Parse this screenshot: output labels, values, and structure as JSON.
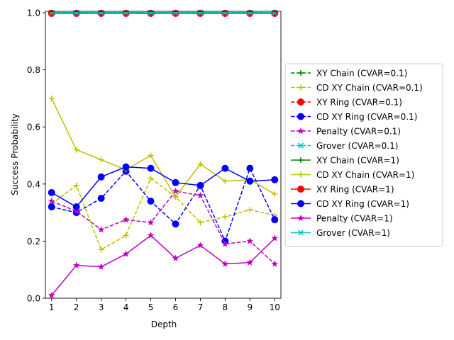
{
  "chart_data": {
    "type": "line",
    "title": "",
    "xlabel": "Depth",
    "ylabel": "Success Probability",
    "xlim": [
      0.75,
      10.25
    ],
    "ylim": [
      0,
      1.005
    ],
    "x": [
      1,
      2,
      3,
      4,
      5,
      6,
      7,
      8,
      9,
      10
    ],
    "xticks": [
      "1",
      "2",
      "3",
      "4",
      "5",
      "6",
      "7",
      "8",
      "9",
      "10"
    ],
    "yticks": [
      "0.0",
      "0.2",
      "0.4",
      "0.6",
      "0.8",
      "1.0"
    ],
    "grid": false,
    "legend_position": "outside-right",
    "series": [
      {
        "name": "XY Chain (CVAR=0.1)",
        "color": "#008000",
        "dash": true,
        "marker": "plus",
        "values": [
          1.0,
          1.0,
          1.0,
          1.0,
          1.0,
          1.0,
          1.0,
          1.0,
          1.0,
          1.0
        ]
      },
      {
        "name": "CD XY Chain (CVAR=0.1)",
        "color": "#bfbf00",
        "dash": true,
        "marker": "plus",
        "values": [
          0.33,
          0.395,
          0.17,
          0.22,
          0.42,
          0.355,
          0.265,
          0.285,
          0.31,
          0.29
        ]
      },
      {
        "name": "XY Ring (CVAR=0.1)",
        "color": "#ff0000",
        "dash": true,
        "marker": "circle",
        "values": [
          0.998,
          0.998,
          0.998,
          0.998,
          0.998,
          0.998,
          0.998,
          0.998,
          0.998,
          0.998
        ]
      },
      {
        "name": "CD XY Ring (CVAR=0.1)",
        "color": "#0000ff",
        "dash": true,
        "marker": "circle",
        "values": [
          0.32,
          0.3,
          0.35,
          0.445,
          0.34,
          0.26,
          0.395,
          0.2,
          0.455,
          0.275
        ]
      },
      {
        "name": "Penalty (CVAR=0.1)",
        "color": "#bf00bf",
        "dash": true,
        "marker": "star",
        "values": [
          0.34,
          0.305,
          0.24,
          0.275,
          0.265,
          0.375,
          0.36,
          0.19,
          0.2,
          0.12
        ]
      },
      {
        "name": "Grover (CVAR=0.1)",
        "color": "#00bfbf",
        "dash": true,
        "marker": "x",
        "values": [
          1.0,
          1.0,
          1.0,
          1.0,
          1.0,
          1.0,
          1.0,
          1.0,
          1.0,
          1.0
        ]
      },
      {
        "name": "XY Chain (CVAR=1)",
        "color": "#008000",
        "dash": false,
        "marker": "plus",
        "values": [
          1.0,
          1.0,
          1.0,
          1.0,
          1.0,
          1.0,
          1.0,
          1.0,
          1.0,
          1.0
        ]
      },
      {
        "name": "CD XY Chain (CVAR=1)",
        "color": "#bfbf00",
        "dash": false,
        "marker": "plus",
        "values": [
          0.7,
          0.52,
          0.485,
          0.45,
          0.5,
          0.355,
          0.47,
          0.41,
          0.415,
          0.365
        ]
      },
      {
        "name": "XY Ring (CVAR=1)",
        "color": "#ff0000",
        "dash": false,
        "marker": "circle",
        "values": [
          0.998,
          0.998,
          0.998,
          0.998,
          0.998,
          0.998,
          0.998,
          0.998,
          0.998,
          0.998
        ]
      },
      {
        "name": "CD XY Ring (CVAR=1)",
        "color": "#0000ff",
        "dash": false,
        "marker": "circle",
        "values": [
          0.37,
          0.32,
          0.425,
          0.46,
          0.455,
          0.405,
          0.395,
          0.455,
          0.41,
          0.415
        ]
      },
      {
        "name": "Penalty (CVAR=1)",
        "color": "#bf00bf",
        "dash": false,
        "marker": "star",
        "values": [
          0.01,
          0.115,
          0.11,
          0.155,
          0.22,
          0.14,
          0.185,
          0.12,
          0.125,
          0.21
        ]
      },
      {
        "name": "Grover (CVAR=1)",
        "color": "#00bfbf",
        "dash": false,
        "marker": "x",
        "values": [
          1.0,
          1.0,
          1.0,
          1.0,
          1.0,
          1.0,
          1.0,
          1.0,
          1.0,
          1.0
        ]
      }
    ]
  }
}
